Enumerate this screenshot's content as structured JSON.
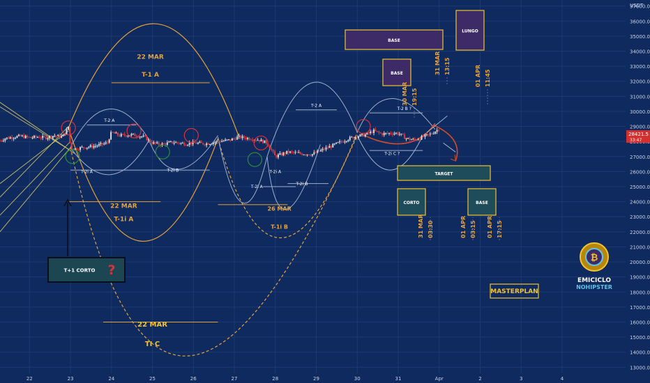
{
  "chart_data": {
    "type": "candlestick",
    "currency": "USDT",
    "y_axis": {
      "ticks": [
        "37000.0",
        "36000.0",
        "35000.0",
        "34000.0",
        "33000.0",
        "32000.0",
        "31000.0",
        "30000.0",
        "29000.0",
        "28000.0",
        "27000.0",
        "26000.0",
        "25000.0",
        "24000.0",
        "23000.0",
        "22000.0",
        "21000.0",
        "20000.0",
        "19000.0",
        "18000.0",
        "17000.0",
        "16000.0",
        "15000.0",
        "14000.0",
        "13000.0"
      ],
      "tick_values": [
        37000,
        36000,
        35000,
        34000,
        33000,
        32000,
        31000,
        30000,
        29000,
        28000,
        27000,
        26000,
        25000,
        24000,
        23000,
        22000,
        21000,
        20000,
        19000,
        18000,
        17000,
        16000,
        15000,
        14000,
        13000
      ],
      "range": [
        12600,
        37400
      ]
    },
    "x_axis": {
      "ticks": [
        "22",
        "23",
        "24",
        "25",
        "26",
        "27",
        "28",
        "29",
        "30",
        "31",
        "Apr",
        "2",
        "3",
        "4"
      ],
      "tick_days": [
        0,
        1,
        2,
        3,
        4,
        5,
        6,
        7,
        8,
        9,
        10,
        11,
        12,
        13
      ],
      "range": [
        -0.72,
        14.55
      ],
      "day_labels": [
        "22 MAR",
        "23 MAR",
        "24 MAR",
        "25 MAR",
        "26 MAR",
        "27 MAR",
        "28 MAR",
        "29 MAR",
        "30 MAR",
        "31 MAR",
        "01 APR",
        "02 APR",
        "03 APR",
        "04 APR"
      ]
    },
    "last_price": "28421.5",
    "countdown": "33:47",
    "price_series": {
      "x": [
        -0.72,
        -0.6,
        -0.4,
        -0.2,
        0.0,
        0.2,
        0.4,
        0.6,
        0.8,
        0.9,
        0.95,
        1.0,
        1.1,
        1.3,
        1.6,
        1.9,
        2.0,
        2.2,
        2.5,
        2.8,
        3.0,
        3.2,
        3.5,
        3.8,
        4.0,
        4.3,
        4.6,
        4.9,
        5.1,
        5.4,
        5.6,
        5.8,
        6.0,
        6.3,
        6.6,
        6.9,
        7.2,
        7.5,
        7.8,
        8.0,
        8.2,
        8.4,
        8.6,
        8.8,
        9.0,
        9.2,
        9.4,
        9.6,
        9.8,
        10.0
      ],
      "close": [
        28050,
        28200,
        28300,
        28350,
        28250,
        28300,
        28250,
        28400,
        28300,
        28700,
        29000,
        27600,
        27500,
        27600,
        27700,
        27900,
        28600,
        28400,
        28450,
        28300,
        27900,
        27800,
        27950,
        27850,
        27900,
        27850,
        28000,
        28100,
        28300,
        28200,
        28100,
        27900,
        27000,
        27300,
        27200,
        27150,
        27500,
        27850,
        28200,
        28350,
        28450,
        28700,
        28500,
        28550,
        28550,
        28200,
        28100,
        28300,
        28500,
        28850
      ]
    },
    "annotations": {
      "boxes": [
        {
          "text": "BASE",
          "style": "purple"
        },
        {
          "text": "BASE",
          "style": "purple"
        },
        {
          "text": "LUNGO",
          "style": "purple"
        },
        {
          "text": "TARGET",
          "style": "teal"
        },
        {
          "text": "CORTO",
          "style": "teal"
        },
        {
          "text": "BASE",
          "style": "teal"
        },
        {
          "text": "T+1 CORTO",
          "style": "teal-dark"
        },
        {
          "text": "MASTERPLAN",
          "style": "outline-yellow"
        }
      ],
      "cycle_labels": [
        "22 MAR",
        "T-1 A",
        "22 MAR",
        "T-1i A",
        "22 MAR",
        "TI C",
        "T-2 A",
        "T-2i A",
        "T-2i B",
        "T-2i A",
        "T-2i A",
        "T-2 A",
        "T-2i B",
        "26 MAR",
        "T-1i B",
        "T-2 B ?",
        "T-2i C ?"
      ],
      "vertical_dates": [
        "30 MAR",
        "19:15",
        "31 MAR",
        "13:15",
        "01 APR",
        "11:45",
        "31 MAR",
        "03:30",
        "01 APR",
        "03:15",
        "01 APR",
        "17:15"
      ],
      "question_mark": "?"
    },
    "watermark": {
      "brand_line1": "EMICICLO",
      "brand_line2": "NOHIPSTER"
    },
    "colors": {
      "background": "#0f2a5e",
      "candle_up": "#d9d9d9",
      "candle_down": "#e03a3a",
      "cycle_major": "#e6a23c",
      "cycle_minor": "#9fb0cc",
      "circle_top": "#d8323c",
      "circle_bottom": "#2e8b3a",
      "trend_line": "#d6c86a",
      "purple_box": "#3d2b67",
      "teal_box": "#1f4c5a",
      "yellow": "#f1c232",
      "price_label": "#d32f2f"
    }
  }
}
